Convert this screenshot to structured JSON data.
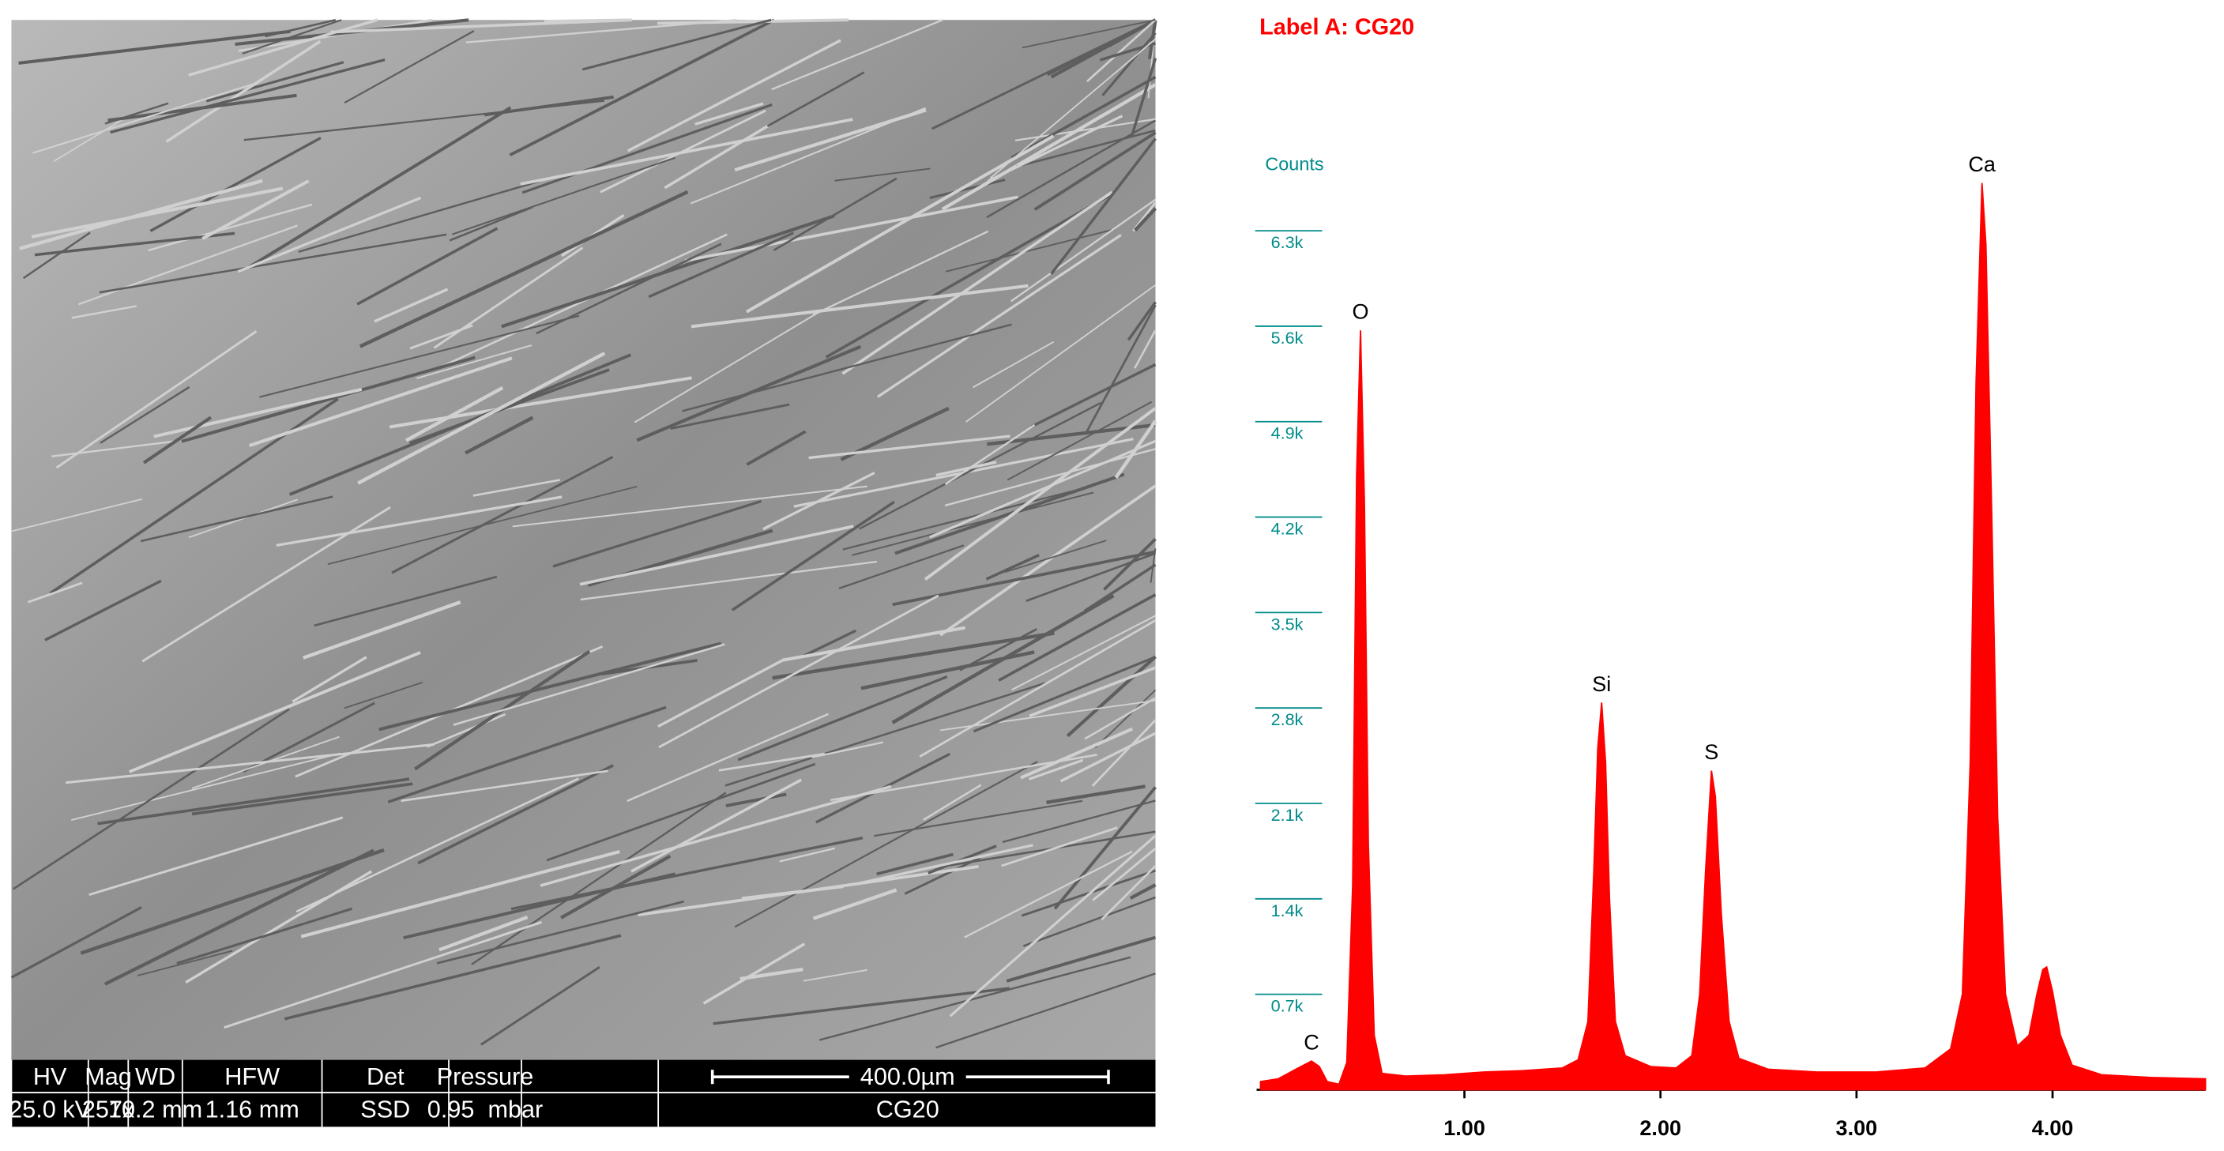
{
  "image": {
    "info_bar": {
      "headers": [
        "HV",
        "Mag",
        "WD",
        "HFW",
        "Det",
        "Pressure"
      ],
      "values": [
        "25.0 kV",
        "257x",
        "10.2 mm",
        "1.16 mm",
        "SSD",
        "0.95  mbar"
      ],
      "scale_bar": "400.0µm",
      "sample": "CG20"
    }
  },
  "chart_data": {
    "type": "area",
    "title": "Label A: CG20",
    "y_label": "Counts",
    "color": "#ff0000",
    "x": [
      -0.04,
      0.05,
      0.14,
      0.22,
      0.26,
      0.3,
      0.36,
      0.4,
      0.43,
      0.45,
      0.47,
      0.49,
      0.51,
      0.54,
      0.58,
      0.7,
      0.9,
      1.1,
      1.3,
      1.5,
      1.58,
      1.63,
      1.66,
      1.68,
      1.7,
      1.72,
      1.74,
      1.77,
      1.82,
      1.95,
      2.08,
      2.16,
      2.2,
      2.23,
      2.26,
      2.28,
      2.31,
      2.35,
      2.4,
      2.55,
      2.8,
      3.1,
      3.35,
      3.48,
      3.54,
      3.58,
      3.61,
      3.64,
      3.66,
      3.69,
      3.72,
      3.76,
      3.82,
      3.88,
      3.92,
      3.95,
      3.97,
      4.0,
      4.04,
      4.1,
      4.25,
      4.5,
      4.78
    ],
    "values": [
      60,
      80,
      150,
      210,
      170,
      60,
      40,
      200,
      1500,
      4500,
      5570,
      4300,
      1800,
      400,
      120,
      100,
      110,
      130,
      140,
      160,
      220,
      500,
      1600,
      2500,
      2840,
      2400,
      1400,
      500,
      250,
      170,
      160,
      250,
      700,
      1600,
      2340,
      2150,
      1300,
      500,
      230,
      150,
      130,
      130,
      160,
      300,
      700,
      2400,
      5200,
      6650,
      6200,
      4200,
      2000,
      700,
      320,
      400,
      700,
      880,
      900,
      720,
      400,
      180,
      110,
      90,
      80
    ],
    "annotations": [
      {
        "text": "C",
        "x": 0.22
      },
      {
        "text": "O",
        "x": 0.47
      },
      {
        "text": "Si",
        "x": 1.7
      },
      {
        "text": "S",
        "x": 2.26
      },
      {
        "text": "Ca",
        "x": 3.64
      }
    ],
    "xlim": [
      -0.06,
      4.78
    ],
    "ylim": [
      0,
      7000
    ],
    "xticks": [
      {
        "value": 1,
        "label": "1.00"
      },
      {
        "value": 2,
        "label": "2.00"
      },
      {
        "value": 3,
        "label": "3.00"
      },
      {
        "value": 4,
        "label": "4.00"
      }
    ],
    "yticks": [
      {
        "value": 700,
        "label": "0.7k"
      },
      {
        "value": 1400,
        "label": "1.4k"
      },
      {
        "value": 2100,
        "label": "2.1k"
      },
      {
        "value": 2800,
        "label": "2.8k"
      },
      {
        "value": 3500,
        "label": "3.5k"
      },
      {
        "value": 4200,
        "label": "4.2k"
      },
      {
        "value": 4900,
        "label": "4.9k"
      },
      {
        "value": 5600,
        "label": "5.6k"
      },
      {
        "value": 6300,
        "label": "6.3k"
      }
    ]
  }
}
